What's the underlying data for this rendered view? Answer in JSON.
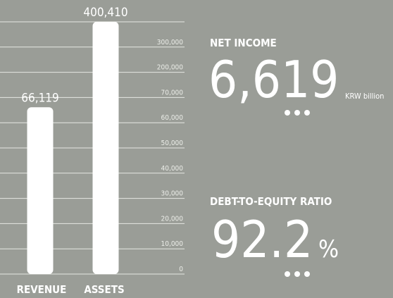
{
  "chart_data": {
    "type": "bar",
    "categories": [
      "REVENUE",
      "ASSETS"
    ],
    "values": [
      66119,
      400410
    ],
    "value_labels": [
      "66,119",
      "400,410"
    ],
    "color": "#ffffff",
    "ylim": [
      0,
      400000
    ],
    "yticks": [
      0,
      {
        "value": 10000,
        "label": "10,000"
      },
      {
        "value": 20000,
        "label": "20,000"
      },
      {
        "value": 30000,
        "label": "30,000"
      },
      {
        "value": 40000,
        "label": "40,000"
      },
      {
        "value": 50000,
        "label": "50,000"
      },
      {
        "value": 60000,
        "label": "60,000"
      },
      {
        "value": 70000,
        "label": "70,000"
      },
      {
        "value": 200000,
        "label": "200,000"
      },
      {
        "value": 300000,
        "label": "300,000"
      }
    ],
    "grid": true
  },
  "kpis": [
    {
      "label": "NET INCOME",
      "value": "6,619",
      "unit": "KRW billion"
    },
    {
      "label": "DEBT-TO-EQUITY RATIO",
      "value": "92.2",
      "unit": "%"
    }
  ]
}
